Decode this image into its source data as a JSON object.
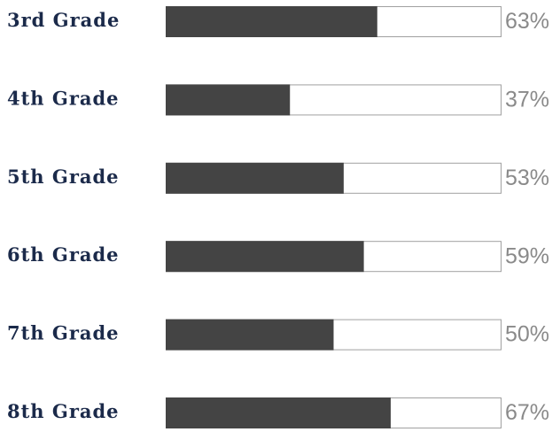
{
  "chart_data": {
    "type": "bar",
    "orientation": "horizontal",
    "categories": [
      "3rd Grade",
      "4th Grade",
      "5th Grade",
      "6th Grade",
      "7th Grade",
      "8th Grade"
    ],
    "values": [
      63,
      37,
      53,
      59,
      50,
      67
    ],
    "value_labels": [
      "63%",
      "37%",
      "53%",
      "59%",
      "50%",
      "67%"
    ],
    "color": "#444444",
    "xlim": [
      0,
      100
    ]
  }
}
